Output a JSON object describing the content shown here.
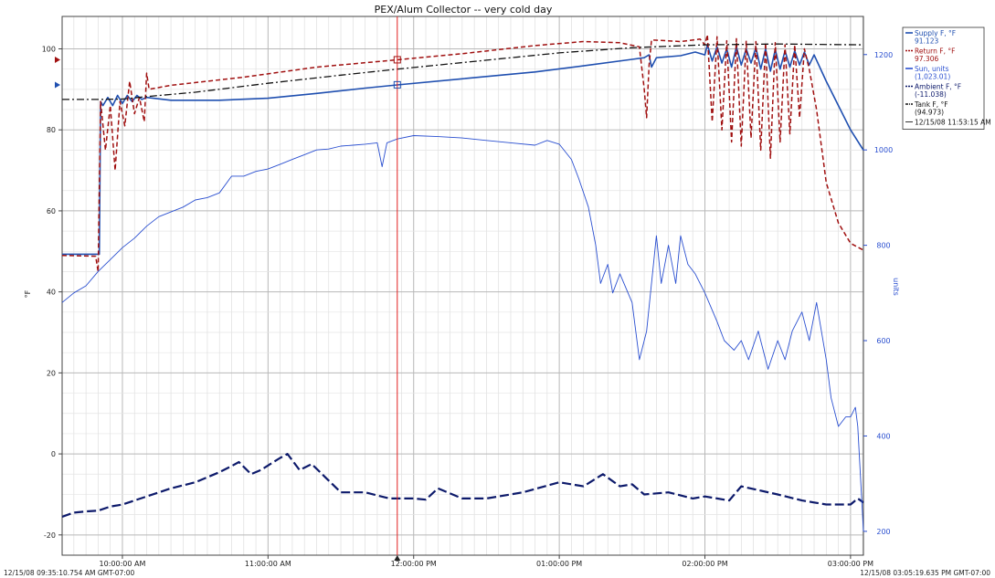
{
  "chart_data": {
    "type": "line",
    "title": "PEX/Alum Collector -- very cold day",
    "ylabel": "°F",
    "ylabel_right": "units",
    "ylim": [
      -25,
      108
    ],
    "ylim_right": [
      150,
      1280
    ],
    "xlim": [
      "09:35:10",
      "15:05:19"
    ],
    "x_ticks": [
      {
        "t": "10:00:00",
        "label": "10:00:00 AM"
      },
      {
        "t": "11:00:00",
        "label": "11:00:00 AM"
      },
      {
        "t": "12:00:00",
        "label": "12:00:00 PM"
      },
      {
        "t": "13:00:00",
        "label": "01:00:00 PM"
      },
      {
        "t": "14:00:00",
        "label": "02:00:00 PM"
      },
      {
        "t": "15:00:00",
        "label": "03:00:00 PM"
      }
    ],
    "y_ticks_left": [
      "-20",
      "0",
      "20",
      "40",
      "60",
      "80",
      "100"
    ],
    "y_ticks_right": [
      "200",
      "400",
      "600",
      "800",
      "1000",
      "1200"
    ],
    "start_label": "12/15/08 09:35:10.754 AM GMT-07:00",
    "end_label": "12/15/08 03:05:19.635 PM GMT-07:00",
    "cursor": {
      "time": "11:53:15"
    },
    "legend": {
      "position": "right",
      "entries": [
        {
          "name": "Supply F, °F",
          "value": "91.123",
          "color": "#1f4fb0",
          "style": "solid"
        },
        {
          "name": "Return F, °F",
          "value": "97.306",
          "color": "#a01010",
          "style": "dashed"
        },
        {
          "name": "Sun, units",
          "value": "(1,023.01)",
          "color": "#2a4fd0",
          "style": "solid"
        },
        {
          "name": "Ambient F, °F",
          "value": "(-11.038)",
          "color": "#0d1a6b",
          "style": "dash"
        },
        {
          "name": "Tank F, °F",
          "value": "(94.973)",
          "color": "#111111",
          "style": "dashdot"
        }
      ],
      "cursor_label": "12/15/08 11:53:15 AM"
    },
    "series": [
      {
        "name": "Supply F, °F",
        "axis": "left",
        "color": "#1f4fb0",
        "dash": "",
        "width": 1.6,
        "points": [
          [
            "09:35:10",
            49.3
          ],
          [
            "09:50:00",
            49.3
          ],
          [
            "09:50:30",
            49.3
          ],
          [
            "09:51:00",
            87
          ],
          [
            "09:52:00",
            86
          ],
          [
            "09:54:00",
            88
          ],
          [
            "09:56:00",
            86
          ],
          [
            "09:58:00",
            88.5
          ],
          [
            "10:00:00",
            86.5
          ],
          [
            "10:02:00",
            88.5
          ],
          [
            "10:04:00",
            87
          ],
          [
            "10:06:00",
            88.5
          ],
          [
            "10:08:00",
            87.5
          ],
          [
            "10:10:00",
            88
          ],
          [
            "10:20:00",
            87.3
          ],
          [
            "10:40:00",
            87.3
          ],
          [
            "11:00:00",
            87.8
          ],
          [
            "11:20:00",
            89
          ],
          [
            "11:40:00",
            90.3
          ],
          [
            "11:53:15",
            91.1
          ],
          [
            "12:20:00",
            92.6
          ],
          [
            "12:50:00",
            94.3
          ],
          [
            "13:10:00",
            95.8
          ],
          [
            "13:30:00",
            97.4
          ],
          [
            "13:35:00",
            97.8
          ],
          [
            "13:37:00",
            98.5
          ],
          [
            "13:38:00",
            95.5
          ],
          [
            "13:40:00",
            97.8
          ],
          [
            "13:50:00",
            98.3
          ],
          [
            "13:56:00",
            99.2
          ],
          [
            "14:00:00",
            98.5
          ],
          [
            "14:01:00",
            101
          ],
          [
            "14:03:00",
            97
          ],
          [
            "14:05:00",
            100.5
          ],
          [
            "14:07:00",
            96.5
          ],
          [
            "14:09:00",
            100
          ],
          [
            "14:11:00",
            95.5
          ],
          [
            "14:13:00",
            100.5
          ],
          [
            "14:15:00",
            96
          ],
          [
            "14:17:00",
            100
          ],
          [
            "14:19:00",
            96.5
          ],
          [
            "14:21:00",
            100.3
          ],
          [
            "14:23:00",
            95
          ],
          [
            "14:25:00",
            100
          ],
          [
            "14:27:00",
            94.5
          ],
          [
            "14:29:00",
            99.8
          ],
          [
            "14:31:00",
            95
          ],
          [
            "14:33:00",
            99.5
          ],
          [
            "14:35:00",
            95.5
          ],
          [
            "14:37:00",
            99.5
          ],
          [
            "14:39:00",
            96
          ],
          [
            "14:41:00",
            99.2
          ],
          [
            "14:43:00",
            96
          ],
          [
            "14:45:00",
            98.5
          ],
          [
            "14:50:00",
            92
          ],
          [
            "14:55:00",
            86
          ],
          [
            "15:00:00",
            80
          ],
          [
            "15:05:19",
            75
          ]
        ]
      },
      {
        "name": "Return F, °F",
        "axis": "left",
        "color": "#a01010",
        "dash": "5,3",
        "width": 1.5,
        "points": [
          [
            "09:35:10",
            49
          ],
          [
            "09:49:00",
            48.8
          ],
          [
            "09:50:00",
            45
          ],
          [
            "09:51:00",
            87
          ],
          [
            "09:53:00",
            75
          ],
          [
            "09:55:00",
            86
          ],
          [
            "09:57:00",
            70
          ],
          [
            "09:59:00",
            87
          ],
          [
            "10:01:00",
            81
          ],
          [
            "10:03:00",
            92
          ],
          [
            "10:05:00",
            84
          ],
          [
            "10:07:00",
            88
          ],
          [
            "10:09:00",
            82
          ],
          [
            "10:10:00",
            94
          ],
          [
            "10:11:00",
            90
          ],
          [
            "10:20:00",
            91
          ],
          [
            "10:50:00",
            93
          ],
          [
            "11:20:00",
            95.5
          ],
          [
            "11:53:15",
            97.3
          ],
          [
            "12:20:00",
            98.8
          ],
          [
            "12:50:00",
            100.8
          ],
          [
            "13:10:00",
            101.8
          ],
          [
            "13:25:00",
            101.5
          ],
          [
            "13:33:00",
            100.5
          ],
          [
            "13:35:00",
            90
          ],
          [
            "13:36:00",
            83
          ],
          [
            "13:37:00",
            96
          ],
          [
            "13:38:00",
            102.2
          ],
          [
            "13:50:00",
            101.8
          ],
          [
            "13:58:00",
            102.4
          ],
          [
            "14:00:00",
            101
          ],
          [
            "14:01:00",
            103.5
          ],
          [
            "14:03:00",
            82
          ],
          [
            "14:05:00",
            103
          ],
          [
            "14:07:00",
            80
          ],
          [
            "14:09:00",
            102
          ],
          [
            "14:11:00",
            77
          ],
          [
            "14:13:00",
            102.5
          ],
          [
            "14:15:00",
            76
          ],
          [
            "14:17:00",
            102
          ],
          [
            "14:19:00",
            78
          ],
          [
            "14:21:00",
            101.8
          ],
          [
            "14:23:00",
            75
          ],
          [
            "14:25:00",
            101.5
          ],
          [
            "14:27:00",
            73
          ],
          [
            "14:29:00",
            101.5
          ],
          [
            "14:31:00",
            77
          ],
          [
            "14:33:00",
            101
          ],
          [
            "14:35:00",
            79
          ],
          [
            "14:37:00",
            101
          ],
          [
            "14:39:00",
            83
          ],
          [
            "14:41:00",
            100
          ],
          [
            "14:43:00",
            95
          ],
          [
            "14:46:00",
            85
          ],
          [
            "14:50:00",
            67
          ],
          [
            "14:55:00",
            57
          ],
          [
            "15:00:00",
            52
          ],
          [
            "15:05:19",
            50.3
          ]
        ]
      },
      {
        "name": "Tank F, °F",
        "axis": "left",
        "color": "#111111",
        "dash": "8,3,2,3",
        "width": 1.3,
        "points": [
          [
            "09:35:10",
            87.5
          ],
          [
            "09:50:00",
            87.5
          ],
          [
            "10:00:00",
            87.6
          ],
          [
            "10:10:00",
            88.2
          ],
          [
            "10:30:00",
            89.3
          ],
          [
            "11:00:00",
            91.5
          ],
          [
            "11:30:00",
            93.5
          ],
          [
            "11:53:15",
            95
          ],
          [
            "12:30:00",
            97.2
          ],
          [
            "13:00:00",
            99
          ],
          [
            "13:30:00",
            100.3
          ],
          [
            "14:00:00",
            101
          ],
          [
            "14:30:00",
            101.2
          ],
          [
            "15:05:19",
            101
          ]
        ]
      },
      {
        "name": "Ambient F, °F",
        "axis": "left",
        "color": "#0d1a6b",
        "dash": "10,4",
        "width": 2.2,
        "points": [
          [
            "09:35:10",
            -15.5
          ],
          [
            "09:40:00",
            -14.5
          ],
          [
            "09:45:00",
            -14.2
          ],
          [
            "09:50:00",
            -14
          ],
          [
            "09:55:00",
            -13
          ],
          [
            "10:00:00",
            -12.5
          ],
          [
            "10:10:00",
            -10.5
          ],
          [
            "10:20:00",
            -8.5
          ],
          [
            "10:30:00",
            -7
          ],
          [
            "10:40:00",
            -4.5
          ],
          [
            "10:45:00",
            -3
          ],
          [
            "10:48:00",
            -2
          ],
          [
            "10:53:00",
            -5
          ],
          [
            "10:57:00",
            -4
          ],
          [
            "11:05:00",
            -1
          ],
          [
            "11:08:00",
            0
          ],
          [
            "11:13:00",
            -4
          ],
          [
            "11:18:00",
            -2.5
          ],
          [
            "11:30:00",
            -9.5
          ],
          [
            "11:40:00",
            -9.5
          ],
          [
            "11:50:00",
            -11
          ],
          [
            "12:00:00",
            -11
          ],
          [
            "12:05:00",
            -11.3
          ],
          [
            "12:10:00",
            -8.5
          ],
          [
            "12:20:00",
            -11
          ],
          [
            "12:30:00",
            -11
          ],
          [
            "12:45:00",
            -9.5
          ],
          [
            "13:00:00",
            -7
          ],
          [
            "13:10:00",
            -8
          ],
          [
            "13:18:00",
            -5
          ],
          [
            "13:25:00",
            -8
          ],
          [
            "13:30:00",
            -7.5
          ],
          [
            "13:35:00",
            -10
          ],
          [
            "13:45:00",
            -9.5
          ],
          [
            "13:55:00",
            -11
          ],
          [
            "14:00:00",
            -10.5
          ],
          [
            "14:10:00",
            -11.5
          ],
          [
            "14:15:00",
            -8
          ],
          [
            "14:30:00",
            -10
          ],
          [
            "14:40:00",
            -11.5
          ],
          [
            "14:50:00",
            -12.5
          ],
          [
            "15:00:00",
            -12.5
          ],
          [
            "15:03:00",
            -11
          ],
          [
            "15:05:19",
            -12
          ]
        ]
      },
      {
        "name": "Sun, units",
        "axis": "right",
        "color": "#2a4fd0",
        "dash": "",
        "width": 0.9,
        "points": [
          [
            "09:35:10",
            680
          ],
          [
            "09:40:00",
            700
          ],
          [
            "09:45:00",
            715
          ],
          [
            "09:50:00",
            745
          ],
          [
            "09:55:00",
            770
          ],
          [
            "10:00:00",
            795
          ],
          [
            "10:05:00",
            815
          ],
          [
            "10:10:00",
            840
          ],
          [
            "10:15:00",
            860
          ],
          [
            "10:20:00",
            870
          ],
          [
            "10:25:00",
            880
          ],
          [
            "10:30:00",
            895
          ],
          [
            "10:35:00",
            900
          ],
          [
            "10:40:00",
            910
          ],
          [
            "10:45:00",
            945
          ],
          [
            "10:50:00",
            945
          ],
          [
            "10:55:00",
            955
          ],
          [
            "11:00:00",
            960
          ],
          [
            "11:05:00",
            970
          ],
          [
            "11:10:00",
            980
          ],
          [
            "11:15:00",
            990
          ],
          [
            "11:20:00",
            1000
          ],
          [
            "11:25:00",
            1002
          ],
          [
            "11:30:00",
            1008
          ],
          [
            "11:35:00",
            1010
          ],
          [
            "11:40:00",
            1012
          ],
          [
            "11:45:00",
            1015
          ],
          [
            "11:47:00",
            965
          ],
          [
            "11:49:00",
            1015
          ],
          [
            "11:53:15",
            1023
          ],
          [
            "12:00:00",
            1030
          ],
          [
            "12:10:00",
            1028
          ],
          [
            "12:20:00",
            1025
          ],
          [
            "12:30:00",
            1020
          ],
          [
            "12:40:00",
            1015
          ],
          [
            "12:50:00",
            1010
          ],
          [
            "12:55:00",
            1020
          ],
          [
            "13:00:00",
            1012
          ],
          [
            "13:05:00",
            980
          ],
          [
            "13:08:00",
            940
          ],
          [
            "13:12:00",
            880
          ],
          [
            "13:15:00",
            800
          ],
          [
            "13:17:00",
            720
          ],
          [
            "13:20:00",
            760
          ],
          [
            "13:22:00",
            700
          ],
          [
            "13:25:00",
            740
          ],
          [
            "13:30:00",
            680
          ],
          [
            "13:33:00",
            560
          ],
          [
            "13:36:00",
            620
          ],
          [
            "13:40:00",
            820
          ],
          [
            "13:42:00",
            720
          ],
          [
            "13:45:00",
            800
          ],
          [
            "13:48:00",
            720
          ],
          [
            "13:50:00",
            820
          ],
          [
            "13:53:00",
            760
          ],
          [
            "13:56:00",
            740
          ],
          [
            "14:00:00",
            700
          ],
          [
            "14:05:00",
            640
          ],
          [
            "14:08:00",
            600
          ],
          [
            "14:12:00",
            580
          ],
          [
            "14:15:00",
            600
          ],
          [
            "14:18:00",
            560
          ],
          [
            "14:22:00",
            620
          ],
          [
            "14:26:00",
            540
          ],
          [
            "14:30:00",
            600
          ],
          [
            "14:33:00",
            560
          ],
          [
            "14:36:00",
            620
          ],
          [
            "14:40:00",
            660
          ],
          [
            "14:43:00",
            600
          ],
          [
            "14:46:00",
            680
          ],
          [
            "14:50:00",
            560
          ],
          [
            "14:52:00",
            480
          ],
          [
            "14:55:00",
            420
          ],
          [
            "14:58:00",
            440
          ],
          [
            "15:00:00",
            440
          ],
          [
            "15:02:00",
            460
          ],
          [
            "15:03:00",
            420
          ],
          [
            "15:05:19",
            200
          ]
        ]
      }
    ]
  }
}
